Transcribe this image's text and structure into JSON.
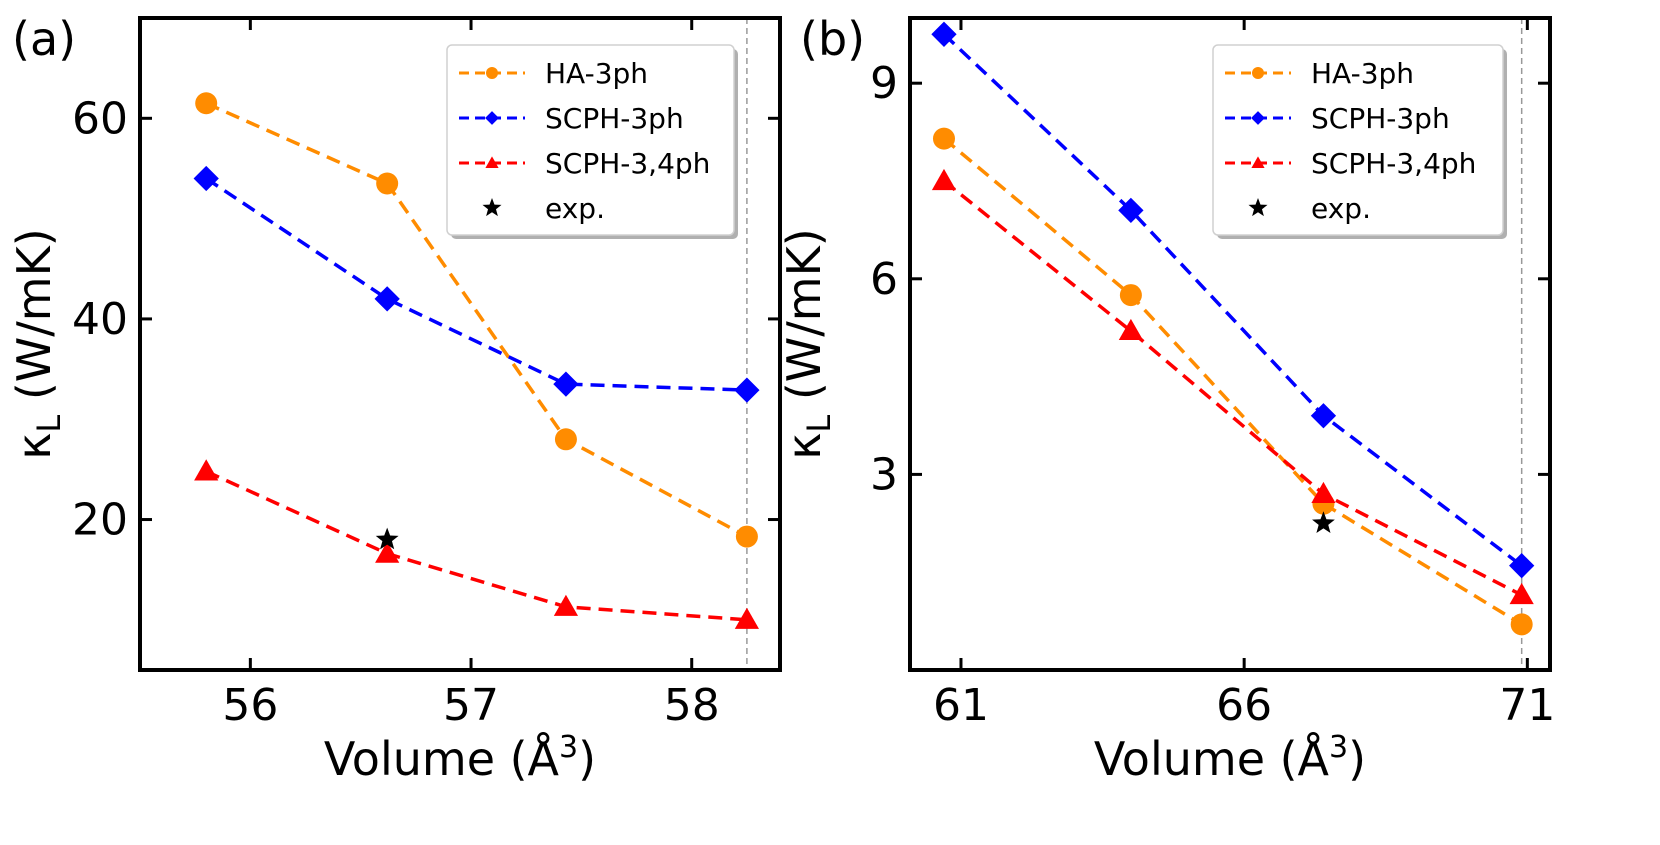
{
  "chart_data": [
    {
      "type": "line",
      "panel_label": "(a)",
      "xlabel": "Volume (Å",
      "xlabel_sup": "3",
      "xlabel_close": ")",
      "ylabel_main": "κ",
      "ylabel_sub": "L",
      "ylabel_rest": " (W/mK)",
      "xlim": [
        55.5,
        58.4
      ],
      "ylim": [
        5,
        70
      ],
      "xticks": [
        56,
        57,
        58
      ],
      "xtick_labels": [
        "56",
        "57",
        "58"
      ],
      "yticks": [
        20,
        40,
        60
      ],
      "ytick_labels": [
        "20",
        "40",
        "60"
      ],
      "vline_x": 58.25,
      "legend_position": "top-right",
      "series": [
        {
          "name": "HA-3ph",
          "color": "#ff8c00",
          "marker": "circle",
          "x": [
            55.8,
            56.62,
            57.43,
            58.25
          ],
          "y": [
            61.5,
            53.5,
            28.0,
            18.3
          ]
        },
        {
          "name": "SCPH-3ph",
          "color": "#0000ff",
          "marker": "diamond",
          "x": [
            55.8,
            56.62,
            57.43,
            58.25
          ],
          "y": [
            54.0,
            42.0,
            33.5,
            32.9
          ]
        },
        {
          "name": "SCPH-3,4ph",
          "color": "#ff0000",
          "marker": "triangle",
          "x": [
            55.8,
            56.62,
            57.43,
            58.25
          ],
          "y": [
            24.8,
            16.6,
            11.3,
            10.0
          ]
        }
      ],
      "exp": {
        "name": "exp.",
        "color": "#000000",
        "x": 56.62,
        "y": 18.0
      }
    },
    {
      "type": "line",
      "panel_label": "(b)",
      "xlabel": "Volume (Å",
      "xlabel_sup": "3",
      "xlabel_close": ")",
      "ylabel_main": "κ",
      "ylabel_sub": "L",
      "ylabel_rest": " (W/mK)",
      "xlim": [
        60.1,
        71.4
      ],
      "ylim": [
        0,
        10
      ],
      "xticks": [
        61,
        66,
        71
      ],
      "xtick_labels": [
        "61",
        "66",
        "71"
      ],
      "yticks": [
        3,
        6,
        9
      ],
      "ytick_labels": [
        "3",
        "6",
        "9"
      ],
      "vline_x": 70.9,
      "legend_position": "top-right",
      "series": [
        {
          "name": "HA-3ph",
          "color": "#ff8c00",
          "marker": "circle",
          "x": [
            60.7,
            64.0,
            67.4,
            70.9
          ],
          "y": [
            8.15,
            5.75,
            2.55,
            0.7
          ]
        },
        {
          "name": "SCPH-3ph",
          "color": "#0000ff",
          "marker": "diamond",
          "x": [
            60.7,
            64.0,
            67.4,
            70.9
          ],
          "y": [
            9.75,
            7.05,
            3.9,
            1.6
          ]
        },
        {
          "name": "SCPH-3,4ph",
          "color": "#ff0000",
          "marker": "triangle",
          "x": [
            60.7,
            64.0,
            67.4,
            70.9
          ],
          "y": [
            7.5,
            5.2,
            2.7,
            1.15
          ]
        }
      ],
      "exp": {
        "name": "exp.",
        "color": "#000000",
        "x": 67.4,
        "y": 2.25
      }
    }
  ]
}
